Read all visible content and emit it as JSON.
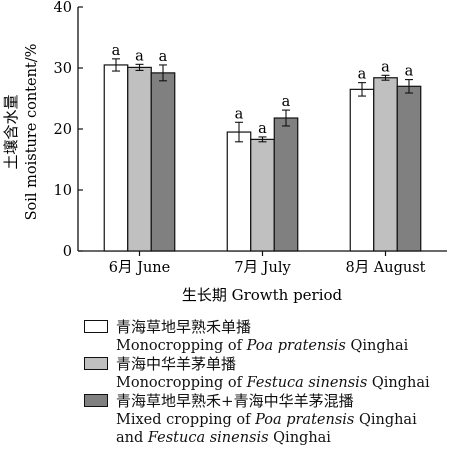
{
  "chart_data": {
    "type": "bar",
    "categories": [
      "6月 June",
      "7月 July",
      "8月 August"
    ],
    "series": [
      {
        "name": "青海草地早熟禾单播 Monocropping of Poa pratensis Qinghai",
        "values": [
          30.5,
          19.5,
          26.5
        ],
        "errors": [
          1.0,
          1.6,
          1.1
        ],
        "letters": [
          "a",
          "a",
          "a"
        ],
        "color": "#ffffff"
      },
      {
        "name": "青海中华羊茅单播 Monocropping of Festuca sinensis Qinghai",
        "values": [
          30.1,
          18.3,
          28.4
        ],
        "errors": [
          0.5,
          0.4,
          0.4
        ],
        "letters": [
          "a",
          "a",
          "a"
        ],
        "color": "#c0c0c0"
      },
      {
        "name": "青海草地早熟禾+青海中华羊茅混播 Mixed cropping of Poa pratensis Qinghai and Festuca sinensis Qinghai",
        "values": [
          29.2,
          21.8,
          27.0
        ],
        "errors": [
          1.3,
          1.3,
          1.1
        ],
        "letters": [
          "a",
          "a",
          "a"
        ],
        "color": "#808080"
      }
    ],
    "ylabel_cn": "土壤含水量",
    "ylabel_en": "Soil moisture content/%",
    "xlabel": "生长期 Growth period",
    "ylim": [
      0,
      40
    ],
    "yticks": [
      0,
      10,
      20,
      30,
      40
    ],
    "grid": false,
    "legend_position": "bottom"
  },
  "legend": [
    {
      "swatch_color": "#ffffff",
      "lines": [
        {
          "text": "青海草地早熟禾单播",
          "parts": [
            {
              "t": "青海草地早熟禾单播"
            }
          ]
        },
        {
          "text": "Monocropping of Poa pratensis Qinghai",
          "parts": [
            {
              "t": "Monocropping of "
            },
            {
              "t": "Poa pratensis",
              "i": true
            },
            {
              "t": " Qinghai"
            }
          ]
        }
      ]
    },
    {
      "swatch_color": "#c0c0c0",
      "lines": [
        {
          "text": "青海中华羊茅单播",
          "parts": [
            {
              "t": "青海中华羊茅单播"
            }
          ]
        },
        {
          "text": "Monocropping of Festuca sinensis Qinghai",
          "parts": [
            {
              "t": "Monocropping of "
            },
            {
              "t": "Festuca sinensis",
              "i": true
            },
            {
              "t": " Qinghai"
            }
          ]
        }
      ]
    },
    {
      "swatch_color": "#808080",
      "lines": [
        {
          "text": "青海草地早熟禾+青海中华羊茅混播",
          "parts": [
            {
              "t": "青海草地早熟禾+青海中华羊茅混播"
            }
          ]
        },
        {
          "text": "Mixed cropping of Poa pratensis Qinghai",
          "parts": [
            {
              "t": "Mixed cropping of "
            },
            {
              "t": "Poa pratensis",
              "i": true
            },
            {
              "t": " Qinghai"
            }
          ]
        },
        {
          "text": "and Festuca sinensis Qinghai",
          "parts": [
            {
              "t": "and "
            },
            {
              "t": "Festuca sinensis",
              "i": true
            },
            {
              "t": " Qinghai"
            }
          ]
        }
      ]
    }
  ]
}
